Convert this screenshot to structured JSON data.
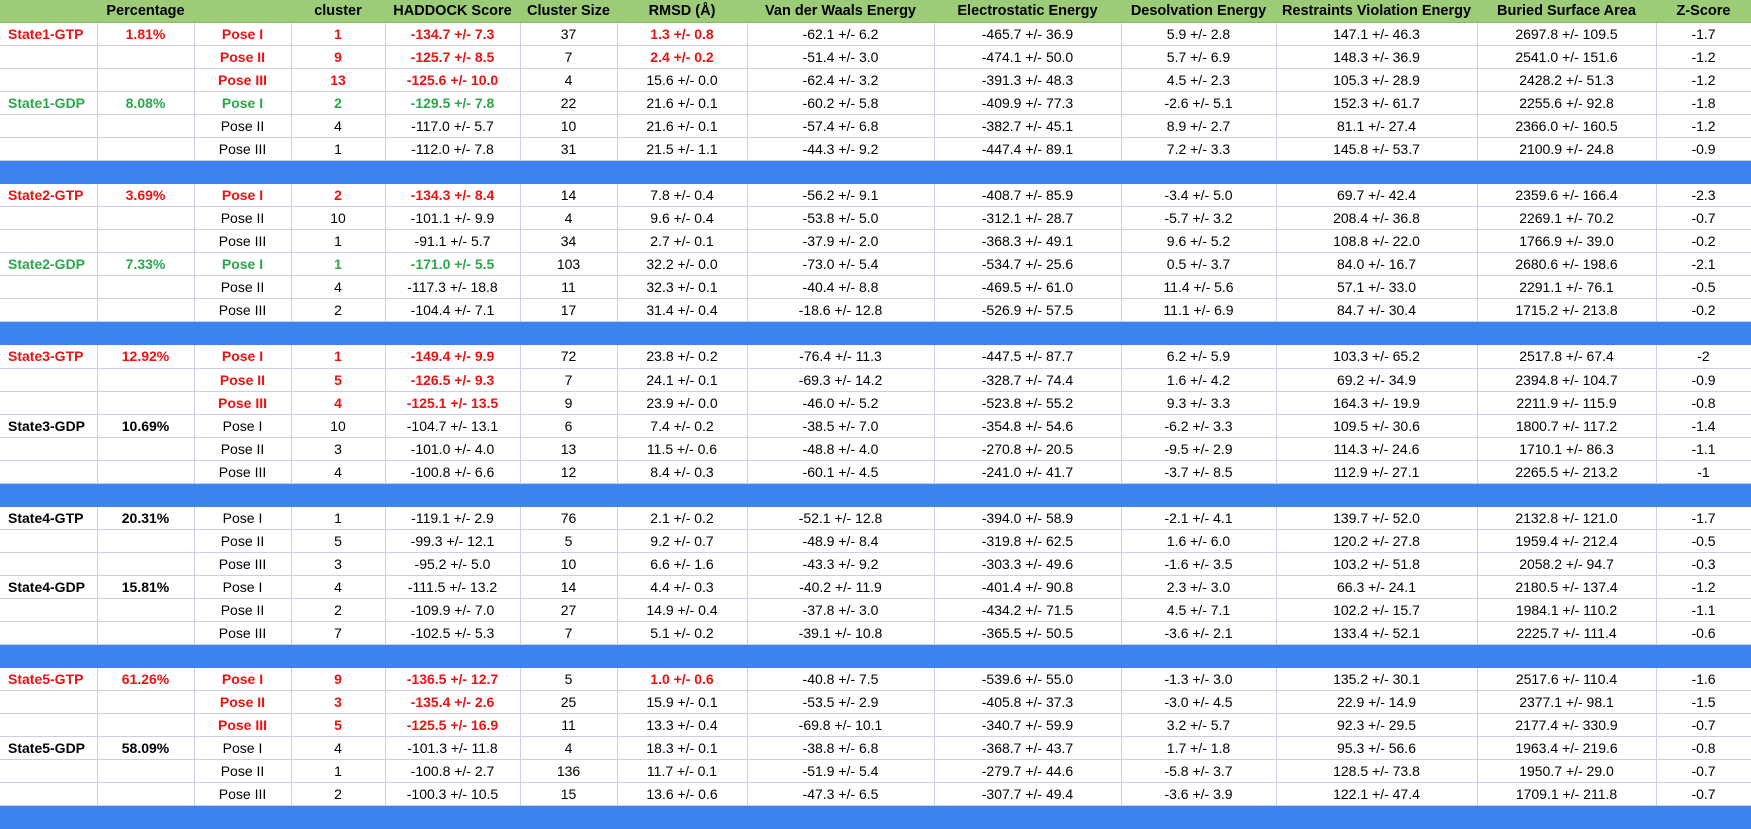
{
  "columns": [
    "",
    "Percentage",
    "",
    "cluster",
    "HADDOCK Score",
    "Cluster Size",
    "RMSD (Å)",
    "Van der Waals Energy",
    "Electrostatic Energy",
    "Desolvation Energy",
    "Restraints Violation Energy",
    "Buried Surface Area",
    "Z-Score"
  ],
  "colors": {
    "header_bg": "#9ccc78",
    "separator_bg": "#3d83ee",
    "highlight_red": "#ee1111",
    "highlight_green": "#2aa84a",
    "grid_line": "#c9cfe6"
  },
  "groups": [
    {
      "rows": [
        {
          "state": "State1-GTP",
          "pct": "1.81%",
          "label_color": "red",
          "pose": "Pose I",
          "cluster": "1",
          "haddock": "-134.7 +/- 7.3",
          "size": "37",
          "rmsd": "1.3 +/- 0.8",
          "vdw": "-62.1 +/- 6.2",
          "elec": "-465.7 +/- 36.9",
          "desolv": "5.9 +/- 2.8",
          "restr": "147.1 +/- 46.3",
          "bsa": "2697.8 +/- 109.5",
          "z": "-1.7",
          "hl": "red",
          "hl_rmsd": true
        },
        {
          "state": "",
          "pct": "",
          "pose": "Pose II",
          "cluster": "9",
          "haddock": "-125.7 +/- 8.5",
          "size": "7",
          "rmsd": "2.4 +/- 0.2",
          "vdw": "-51.4 +/- 3.0",
          "elec": "-474.1 +/- 50.0",
          "desolv": "5.7 +/- 6.9",
          "restr": "148.3 +/- 36.9",
          "bsa": "2541.0 +/- 151.6",
          "z": "-1.2",
          "hl": "red",
          "hl_rmsd": true
        },
        {
          "state": "",
          "pct": "",
          "pose": "Pose III",
          "cluster": "13",
          "haddock": "-125.6 +/- 10.0",
          "size": "4",
          "rmsd": "15.6 +/- 0.0",
          "vdw": "-62.4 +/- 3.2",
          "elec": "-391.3 +/- 48.3",
          "desolv": "4.5 +/- 2.3",
          "restr": "105.3 +/- 28.9",
          "bsa": "2428.2 +/- 51.3",
          "z": "-1.2",
          "hl": "red"
        },
        {
          "state": "State1-GDP",
          "pct": "8.08%",
          "label_color": "green",
          "pose": "Pose I",
          "cluster": "2",
          "haddock": "-129.5 +/- 7.8",
          "size": "22",
          "rmsd": "21.6 +/- 0.1",
          "vdw": "-60.2 +/- 5.8",
          "elec": "-409.9 +/- 77.3",
          "desolv": "-2.6 +/- 5.1",
          "restr": "152.3 +/- 61.7",
          "bsa": "2255.6 +/- 92.8",
          "z": "-1.8",
          "hl": "green"
        },
        {
          "state": "",
          "pct": "",
          "pose": "Pose II",
          "cluster": "4",
          "haddock": "-117.0 +/- 5.7",
          "size": "10",
          "rmsd": "21.6 +/- 0.1",
          "vdw": "-57.4 +/- 6.8",
          "elec": "-382.7 +/- 45.1",
          "desolv": "8.9 +/- 2.7",
          "restr": "81.1 +/- 27.4",
          "bsa": "2366.0 +/- 160.5",
          "z": "-1.2"
        },
        {
          "state": "",
          "pct": "",
          "pose": "Pose III",
          "cluster": "1",
          "haddock": "-112.0 +/- 7.8",
          "size": "31",
          "rmsd": "21.5 +/- 1.1",
          "vdw": "-44.3 +/- 9.2",
          "elec": "-447.4 +/- 89.1",
          "desolv": "7.2 +/- 3.3",
          "restr": "145.8 +/- 53.7",
          "bsa": "2100.9 +/- 24.8",
          "z": "-0.9"
        }
      ]
    },
    {
      "rows": [
        {
          "state": "State2-GTP",
          "pct": "3.69%",
          "label_color": "red",
          "pose": "Pose I",
          "cluster": "2",
          "haddock": "-134.3 +/- 8.4",
          "size": "14",
          "rmsd": "7.8 +/- 0.4",
          "vdw": "-56.2 +/- 9.1",
          "elec": "-408.7 +/- 85.9",
          "desolv": "-3.4 +/- 5.0",
          "restr": "69.7 +/- 42.4",
          "bsa": "2359.6 +/- 166.4",
          "z": "-2.3",
          "hl": "red"
        },
        {
          "state": "",
          "pct": "",
          "pose": "Pose II",
          "cluster": "10",
          "haddock": "-101.1 +/- 9.9",
          "size": "4",
          "rmsd": "9.6 +/- 0.4",
          "vdw": "-53.8 +/- 5.0",
          "elec": "-312.1 +/- 28.7",
          "desolv": "-5.7 +/- 3.2",
          "restr": "208.4 +/- 36.8",
          "bsa": "2269.1 +/- 70.2",
          "z": "-0.7"
        },
        {
          "state": "",
          "pct": "",
          "pose": "Pose III",
          "cluster": "1",
          "haddock": "-91.1 +/- 5.7",
          "size": "34",
          "rmsd": "2.7 +/- 0.1",
          "vdw": "-37.9 +/- 2.0",
          "elec": "-368.3 +/- 49.1",
          "desolv": "9.6 +/- 5.2",
          "restr": "108.8 +/- 22.0",
          "bsa": "1766.9 +/- 39.0",
          "z": "-0.2"
        },
        {
          "state": "State2-GDP",
          "pct": "7.33%",
          "label_color": "green",
          "pose": "Pose I",
          "cluster": "1",
          "haddock": "-171.0 +/- 5.5",
          "size": "103",
          "rmsd": "32.2 +/- 0.0",
          "vdw": "-73.0 +/- 5.4",
          "elec": "-534.7 +/- 25.6",
          "desolv": "0.5 +/- 3.7",
          "restr": "84.0 +/- 16.7",
          "bsa": "2680.6 +/- 198.6",
          "z": "-2.1",
          "hl": "green"
        },
        {
          "state": "",
          "pct": "",
          "pose": "Pose II",
          "cluster": "4",
          "haddock": "-117.3 +/- 18.8",
          "size": "11",
          "rmsd": "32.3 +/- 0.1",
          "vdw": "-40.4 +/- 8.8",
          "elec": "-469.5 +/- 61.0",
          "desolv": "11.4 +/- 5.6",
          "restr": "57.1 +/- 33.0",
          "bsa": "2291.1 +/- 76.1",
          "z": "-0.5"
        },
        {
          "state": "",
          "pct": "",
          "pose": "Pose III",
          "cluster": "2",
          "haddock": "-104.4 +/- 7.1",
          "size": "17",
          "rmsd": "31.4 +/- 0.4",
          "vdw": "-18.6 +/- 12.8",
          "elec": "-526.9 +/- 57.5",
          "desolv": "11.1 +/- 6.9",
          "restr": "84.7 +/- 30.4",
          "bsa": "1715.2 +/- 213.8",
          "z": "-0.2"
        }
      ]
    },
    {
      "rows": [
        {
          "state": "State3-GTP",
          "pct": "12.92%",
          "label_color": "red",
          "pose": "Pose I",
          "cluster": "1",
          "haddock": "-149.4 +/- 9.9",
          "size": "72",
          "rmsd": "23.8 +/- 0.2",
          "vdw": "-76.4 +/- 11.3",
          "elec": "-447.5 +/- 87.7",
          "desolv": "6.2 +/- 5.9",
          "restr": "103.3 +/- 65.2",
          "bsa": "2517.8 +/- 67.4",
          "z": "-2",
          "hl": "red"
        },
        {
          "state": "",
          "pct": "",
          "pose": "Pose II",
          "cluster": "5",
          "haddock": "-126.5 +/- 9.3",
          "size": "7",
          "rmsd": "24.1 +/- 0.1",
          "vdw": "-69.3 +/- 14.2",
          "elec": "-328.7 +/- 74.4",
          "desolv": "1.6 +/- 4.2",
          "restr": "69.2 +/- 34.9",
          "bsa": "2394.8 +/- 104.7",
          "z": "-0.9",
          "hl": "red"
        },
        {
          "state": "",
          "pct": "",
          "pose": "Pose III",
          "cluster": "4",
          "haddock": "-125.1 +/- 13.5",
          "size": "9",
          "rmsd": "23.9 +/- 0.0",
          "vdw": "-46.0 +/- 5.2",
          "elec": "-523.8 +/- 55.2",
          "desolv": "9.3 +/- 3.3",
          "restr": "164.3 +/- 19.9",
          "bsa": "2211.9 +/- 115.9",
          "z": "-0.8",
          "hl": "red"
        },
        {
          "state": "State3-GDP",
          "pct": "10.69%",
          "label_color": "black",
          "pose": "Pose I",
          "cluster": "10",
          "haddock": "-104.7 +/- 13.1",
          "size": "6",
          "rmsd": "7.4 +/- 0.2",
          "vdw": "-38.5 +/- 7.0",
          "elec": "-354.8 +/- 54.6",
          "desolv": "-6.2 +/- 3.3",
          "restr": "109.5 +/- 30.6",
          "bsa": "1800.7 +/- 117.2",
          "z": "-1.4"
        },
        {
          "state": "",
          "pct": "",
          "pose": "Pose II",
          "cluster": "3",
          "haddock": "-101.0 +/- 4.0",
          "size": "13",
          "rmsd": "11.5 +/- 0.6",
          "vdw": "-48.8 +/- 4.0",
          "elec": "-270.8 +/- 20.5",
          "desolv": "-9.5 +/- 2.9",
          "restr": "114.3 +/- 24.6",
          "bsa": "1710.1 +/- 86.3",
          "z": "-1.1"
        },
        {
          "state": "",
          "pct": "",
          "pose": "Pose III",
          "cluster": "4",
          "haddock": "-100.8 +/- 6.6",
          "size": "12",
          "rmsd": "8.4 +/- 0.3",
          "vdw": "-60.1 +/- 4.5",
          "elec": "-241.0 +/- 41.7",
          "desolv": "-3.7 +/- 8.5",
          "restr": "112.9 +/- 27.1",
          "bsa": "2265.5 +/- 213.2",
          "z": "-1"
        }
      ]
    },
    {
      "rows": [
        {
          "state": "State4-GTP",
          "pct": "20.31%",
          "label_color": "black",
          "pose": "Pose I",
          "cluster": "1",
          "haddock": "-119.1 +/- 2.9",
          "size": "76",
          "rmsd": "2.1 +/- 0.2",
          "vdw": "-52.1 +/- 12.8",
          "elec": "-394.0 +/- 58.9",
          "desolv": "-2.1 +/- 4.1",
          "restr": "139.7 +/- 52.0",
          "bsa": "2132.8 +/- 121.0",
          "z": "-1.7"
        },
        {
          "state": "",
          "pct": "",
          "pose": "Pose II",
          "cluster": "5",
          "haddock": "-99.3 +/- 12.1",
          "size": "5",
          "rmsd": "9.2 +/- 0.7",
          "vdw": "-48.9 +/- 8.4",
          "elec": "-319.8 +/- 62.5",
          "desolv": "1.6 +/- 6.0",
          "restr": "120.2 +/- 27.8",
          "bsa": "1959.4 +/- 212.4",
          "z": "-0.5"
        },
        {
          "state": "",
          "pct": "",
          "pose": "Pose III",
          "cluster": "3",
          "haddock": "-95.2 +/- 5.0",
          "size": "10",
          "rmsd": "6.6 +/- 1.6",
          "vdw": "-43.3 +/- 9.2",
          "elec": "-303.3 +/- 49.6",
          "desolv": "-1.6 +/- 3.5",
          "restr": "103.2 +/- 51.8",
          "bsa": "2058.2 +/- 94.7",
          "z": "-0.3"
        },
        {
          "state": "State4-GDP",
          "pct": "15.81%",
          "label_color": "black",
          "pose": "Pose I",
          "cluster": "4",
          "haddock": "-111.5 +/- 13.2",
          "size": "14",
          "rmsd": "4.4 +/- 0.3",
          "vdw": "-40.2 +/- 11.9",
          "elec": "-401.4 +/- 90.8",
          "desolv": "2.3 +/- 3.0",
          "restr": "66.3 +/- 24.1",
          "bsa": "2180.5 +/- 137.4",
          "z": "-1.2"
        },
        {
          "state": "",
          "pct": "",
          "pose": "Pose II",
          "cluster": "2",
          "haddock": "-109.9 +/- 7.0",
          "size": "27",
          "rmsd": "14.9 +/- 0.4",
          "vdw": "-37.8 +/- 3.0",
          "elec": "-434.2 +/- 71.5",
          "desolv": "4.5 +/- 7.1",
          "restr": "102.2 +/- 15.7",
          "bsa": "1984.1 +/- 110.2",
          "z": "-1.1"
        },
        {
          "state": "",
          "pct": "",
          "pose": "Pose III",
          "cluster": "7",
          "haddock": "-102.5 +/- 5.3",
          "size": "7",
          "rmsd": "5.1 +/- 0.2",
          "vdw": "-39.1 +/- 10.8",
          "elec": "-365.5 +/- 50.5",
          "desolv": "-3.6 +/- 2.1",
          "restr": "133.4 +/- 52.1",
          "bsa": "2225.7 +/- 111.4",
          "z": "-0.6"
        }
      ]
    },
    {
      "rows": [
        {
          "state": "State5-GTP",
          "pct": "61.26%",
          "label_color": "red",
          "pose": "Pose I",
          "cluster": "9",
          "haddock": "-136.5 +/- 12.7",
          "size": "5",
          "rmsd": "1.0 +/- 0.6",
          "vdw": "-40.8 +/- 7.5",
          "elec": "-539.6 +/- 55.0",
          "desolv": "-1.3 +/- 3.0",
          "restr": "135.2 +/- 30.1",
          "bsa": "2517.6 +/- 110.4",
          "z": "-1.6",
          "hl": "red",
          "hl_rmsd": true
        },
        {
          "state": "",
          "pct": "",
          "pose": "Pose II",
          "cluster": "3",
          "haddock": "-135.4 +/- 2.6",
          "size": "25",
          "rmsd": "15.9 +/- 0.1",
          "vdw": "-53.5 +/- 2.9",
          "elec": "-405.8 +/- 37.3",
          "desolv": "-3.0 +/- 4.5",
          "restr": "22.9 +/- 14.9",
          "bsa": "2377.1 +/- 98.1",
          "z": "-1.5",
          "hl": "red"
        },
        {
          "state": "",
          "pct": "",
          "pose": "Pose III",
          "cluster": "5",
          "haddock": "-125.5 +/- 16.9",
          "size": "11",
          "rmsd": "13.3 +/- 0.4",
          "vdw": "-69.8 +/- 10.1",
          "elec": "-340.7 +/- 59.9",
          "desolv": "3.2 +/- 5.7",
          "restr": "92.3 +/- 29.5",
          "bsa": "2177.4 +/- 330.9",
          "z": "-0.7",
          "hl": "red"
        },
        {
          "state": "State5-GDP",
          "pct": "58.09%",
          "label_color": "black",
          "pose": "Pose I",
          "cluster": "4",
          "haddock": "-101.3 +/- 11.8",
          "size": "4",
          "rmsd": "18.3 +/- 0.1",
          "vdw": "-38.8 +/- 6.8",
          "elec": "-368.7 +/- 43.7",
          "desolv": "1.7 +/- 1.8",
          "restr": "95.3 +/- 56.6",
          "bsa": "1963.4 +/- 219.6",
          "z": "-0.8"
        },
        {
          "state": "",
          "pct": "",
          "pose": "Pose II",
          "cluster": "1",
          "haddock": "-100.8 +/- 2.7",
          "size": "136",
          "rmsd": "11.7 +/- 0.1",
          "vdw": "-51.9 +/- 5.4",
          "elec": "-279.7 +/- 44.6",
          "desolv": "-5.8 +/- 3.7",
          "restr": "128.5 +/- 73.8",
          "bsa": "1950.7 +/- 29.0",
          "z": "-0.7"
        },
        {
          "state": "",
          "pct": "",
          "pose": "Pose III",
          "cluster": "2",
          "haddock": "-100.3 +/- 10.5",
          "size": "15",
          "rmsd": "13.6 +/- 0.6",
          "vdw": "-47.3 +/- 6.5",
          "elec": "-307.7 +/- 49.4",
          "desolv": "-3.6 +/- 3.9",
          "restr": "122.1 +/- 47.4",
          "bsa": "1709.1 +/- 211.8",
          "z": "-0.7"
        }
      ]
    }
  ]
}
